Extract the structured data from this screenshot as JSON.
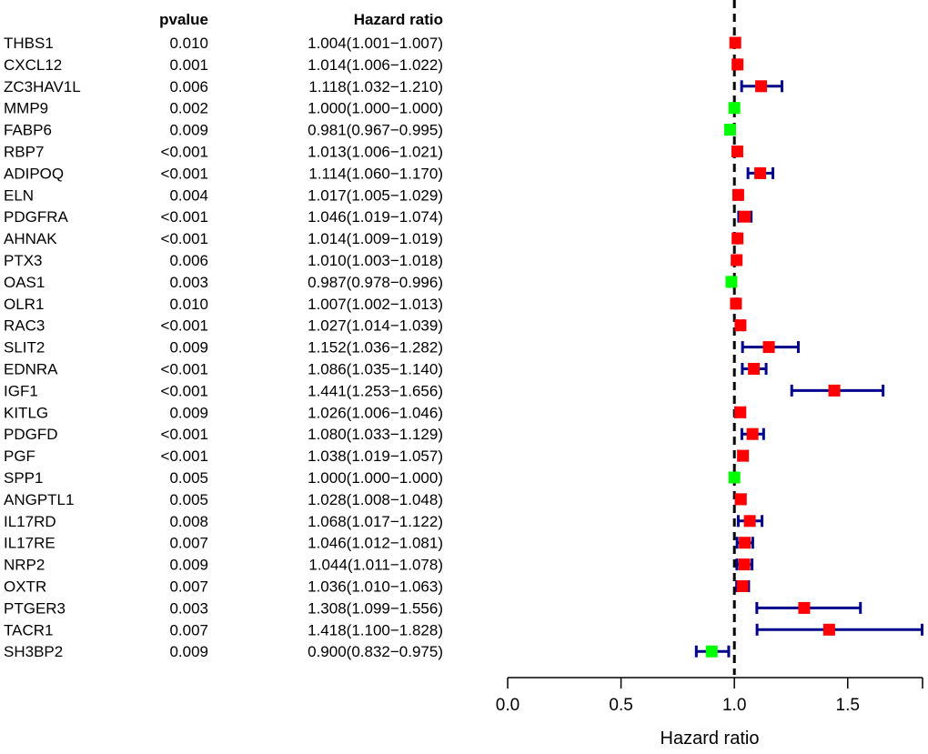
{
  "chart_data": {
    "type": "forest",
    "headers": {
      "pvalue": "pvalue",
      "hazard_ratio": "Hazard ratio"
    },
    "xlabel": "Hazard ratio",
    "xlim": [
      0.0,
      1.83
    ],
    "xticks": [
      0.0,
      0.5,
      1.0,
      1.5
    ],
    "xtick_labels": [
      "0.0",
      "0.5",
      "1.0",
      "1.5"
    ],
    "reference_line": 1.0,
    "colors": {
      "risk": "#ff0000",
      "protective": "#00ff00",
      "ci": "#00008b",
      "axis": "#000000"
    },
    "rows": [
      {
        "gene": "THBS1",
        "pvalue": "0.010",
        "hr_text": "1.004(1.001−1.007)",
        "hr": 1.004,
        "lo": 1.001,
        "hi": 1.007
      },
      {
        "gene": "CXCL12",
        "pvalue": "0.001",
        "hr_text": "1.014(1.006−1.022)",
        "hr": 1.014,
        "lo": 1.006,
        "hi": 1.022
      },
      {
        "gene": "ZC3HAV1L",
        "pvalue": "0.006",
        "hr_text": "1.118(1.032−1.210)",
        "hr": 1.118,
        "lo": 1.032,
        "hi": 1.21
      },
      {
        "gene": "MMP9",
        "pvalue": "0.002",
        "hr_text": "1.000(1.000−1.000)",
        "hr": 1.0,
        "lo": 1.0,
        "hi": 1.0
      },
      {
        "gene": "FABP6",
        "pvalue": "0.009",
        "hr_text": "0.981(0.967−0.995)",
        "hr": 0.981,
        "lo": 0.967,
        "hi": 0.995
      },
      {
        "gene": "RBP7",
        "pvalue": "<0.001",
        "hr_text": "1.013(1.006−1.021)",
        "hr": 1.013,
        "lo": 1.006,
        "hi": 1.021
      },
      {
        "gene": "ADIPOQ",
        "pvalue": "<0.001",
        "hr_text": "1.114(1.060−1.170)",
        "hr": 1.114,
        "lo": 1.06,
        "hi": 1.17
      },
      {
        "gene": "ELN",
        "pvalue": "0.004",
        "hr_text": "1.017(1.005−1.029)",
        "hr": 1.017,
        "lo": 1.005,
        "hi": 1.029
      },
      {
        "gene": "PDGFRA",
        "pvalue": "<0.001",
        "hr_text": "1.046(1.019−1.074)",
        "hr": 1.046,
        "lo": 1.019,
        "hi": 1.074
      },
      {
        "gene": "AHNAK",
        "pvalue": "<0.001",
        "hr_text": "1.014(1.009−1.019)",
        "hr": 1.014,
        "lo": 1.009,
        "hi": 1.019
      },
      {
        "gene": "PTX3",
        "pvalue": "0.006",
        "hr_text": "1.010(1.003−1.018)",
        "hr": 1.01,
        "lo": 1.003,
        "hi": 1.018
      },
      {
        "gene": "OAS1",
        "pvalue": "0.003",
        "hr_text": "0.987(0.978−0.996)",
        "hr": 0.987,
        "lo": 0.978,
        "hi": 0.996
      },
      {
        "gene": "OLR1",
        "pvalue": "0.010",
        "hr_text": "1.007(1.002−1.013)",
        "hr": 1.007,
        "lo": 1.002,
        "hi": 1.013
      },
      {
        "gene": "RAC3",
        "pvalue": "<0.001",
        "hr_text": "1.027(1.014−1.039)",
        "hr": 1.027,
        "lo": 1.014,
        "hi": 1.039
      },
      {
        "gene": "SLIT2",
        "pvalue": "0.009",
        "hr_text": "1.152(1.036−1.282)",
        "hr": 1.152,
        "lo": 1.036,
        "hi": 1.282
      },
      {
        "gene": "EDNRA",
        "pvalue": "<0.001",
        "hr_text": "1.086(1.035−1.140)",
        "hr": 1.086,
        "lo": 1.035,
        "hi": 1.14
      },
      {
        "gene": "IGF1",
        "pvalue": "<0.001",
        "hr_text": "1.441(1.253−1.656)",
        "hr": 1.441,
        "lo": 1.253,
        "hi": 1.656
      },
      {
        "gene": "KITLG",
        "pvalue": "0.009",
        "hr_text": "1.026(1.006−1.046)",
        "hr": 1.026,
        "lo": 1.006,
        "hi": 1.046
      },
      {
        "gene": "PDGFD",
        "pvalue": "<0.001",
        "hr_text": "1.080(1.033−1.129)",
        "hr": 1.08,
        "lo": 1.033,
        "hi": 1.129
      },
      {
        "gene": "PGF",
        "pvalue": "<0.001",
        "hr_text": "1.038(1.019−1.057)",
        "hr": 1.038,
        "lo": 1.019,
        "hi": 1.057
      },
      {
        "gene": "SPP1",
        "pvalue": "0.005",
        "hr_text": "1.000(1.000−1.000)",
        "hr": 1.0,
        "lo": 1.0,
        "hi": 1.0
      },
      {
        "gene": "ANGPTL1",
        "pvalue": "0.005",
        "hr_text": "1.028(1.008−1.048)",
        "hr": 1.028,
        "lo": 1.008,
        "hi": 1.048
      },
      {
        "gene": "IL17RD",
        "pvalue": "0.008",
        "hr_text": "1.068(1.017−1.122)",
        "hr": 1.068,
        "lo": 1.017,
        "hi": 1.122
      },
      {
        "gene": "IL17RE",
        "pvalue": "0.007",
        "hr_text": "1.046(1.012−1.081)",
        "hr": 1.046,
        "lo": 1.012,
        "hi": 1.081
      },
      {
        "gene": "NRP2",
        "pvalue": "0.009",
        "hr_text": "1.044(1.011−1.078)",
        "hr": 1.044,
        "lo": 1.011,
        "hi": 1.078
      },
      {
        "gene": "OXTR",
        "pvalue": "0.007",
        "hr_text": "1.036(1.010−1.063)",
        "hr": 1.036,
        "lo": 1.01,
        "hi": 1.063
      },
      {
        "gene": "PTGER3",
        "pvalue": "0.003",
        "hr_text": "1.308(1.099−1.556)",
        "hr": 1.308,
        "lo": 1.099,
        "hi": 1.556
      },
      {
        "gene": "TACR1",
        "pvalue": "0.007",
        "hr_text": "1.418(1.100−1.828)",
        "hr": 1.418,
        "lo": 1.1,
        "hi": 1.828
      },
      {
        "gene": "SH3BP2",
        "pvalue": "0.009",
        "hr_text": "0.900(0.832−0.975)",
        "hr": 0.9,
        "lo": 0.832,
        "hi": 0.975
      }
    ]
  }
}
